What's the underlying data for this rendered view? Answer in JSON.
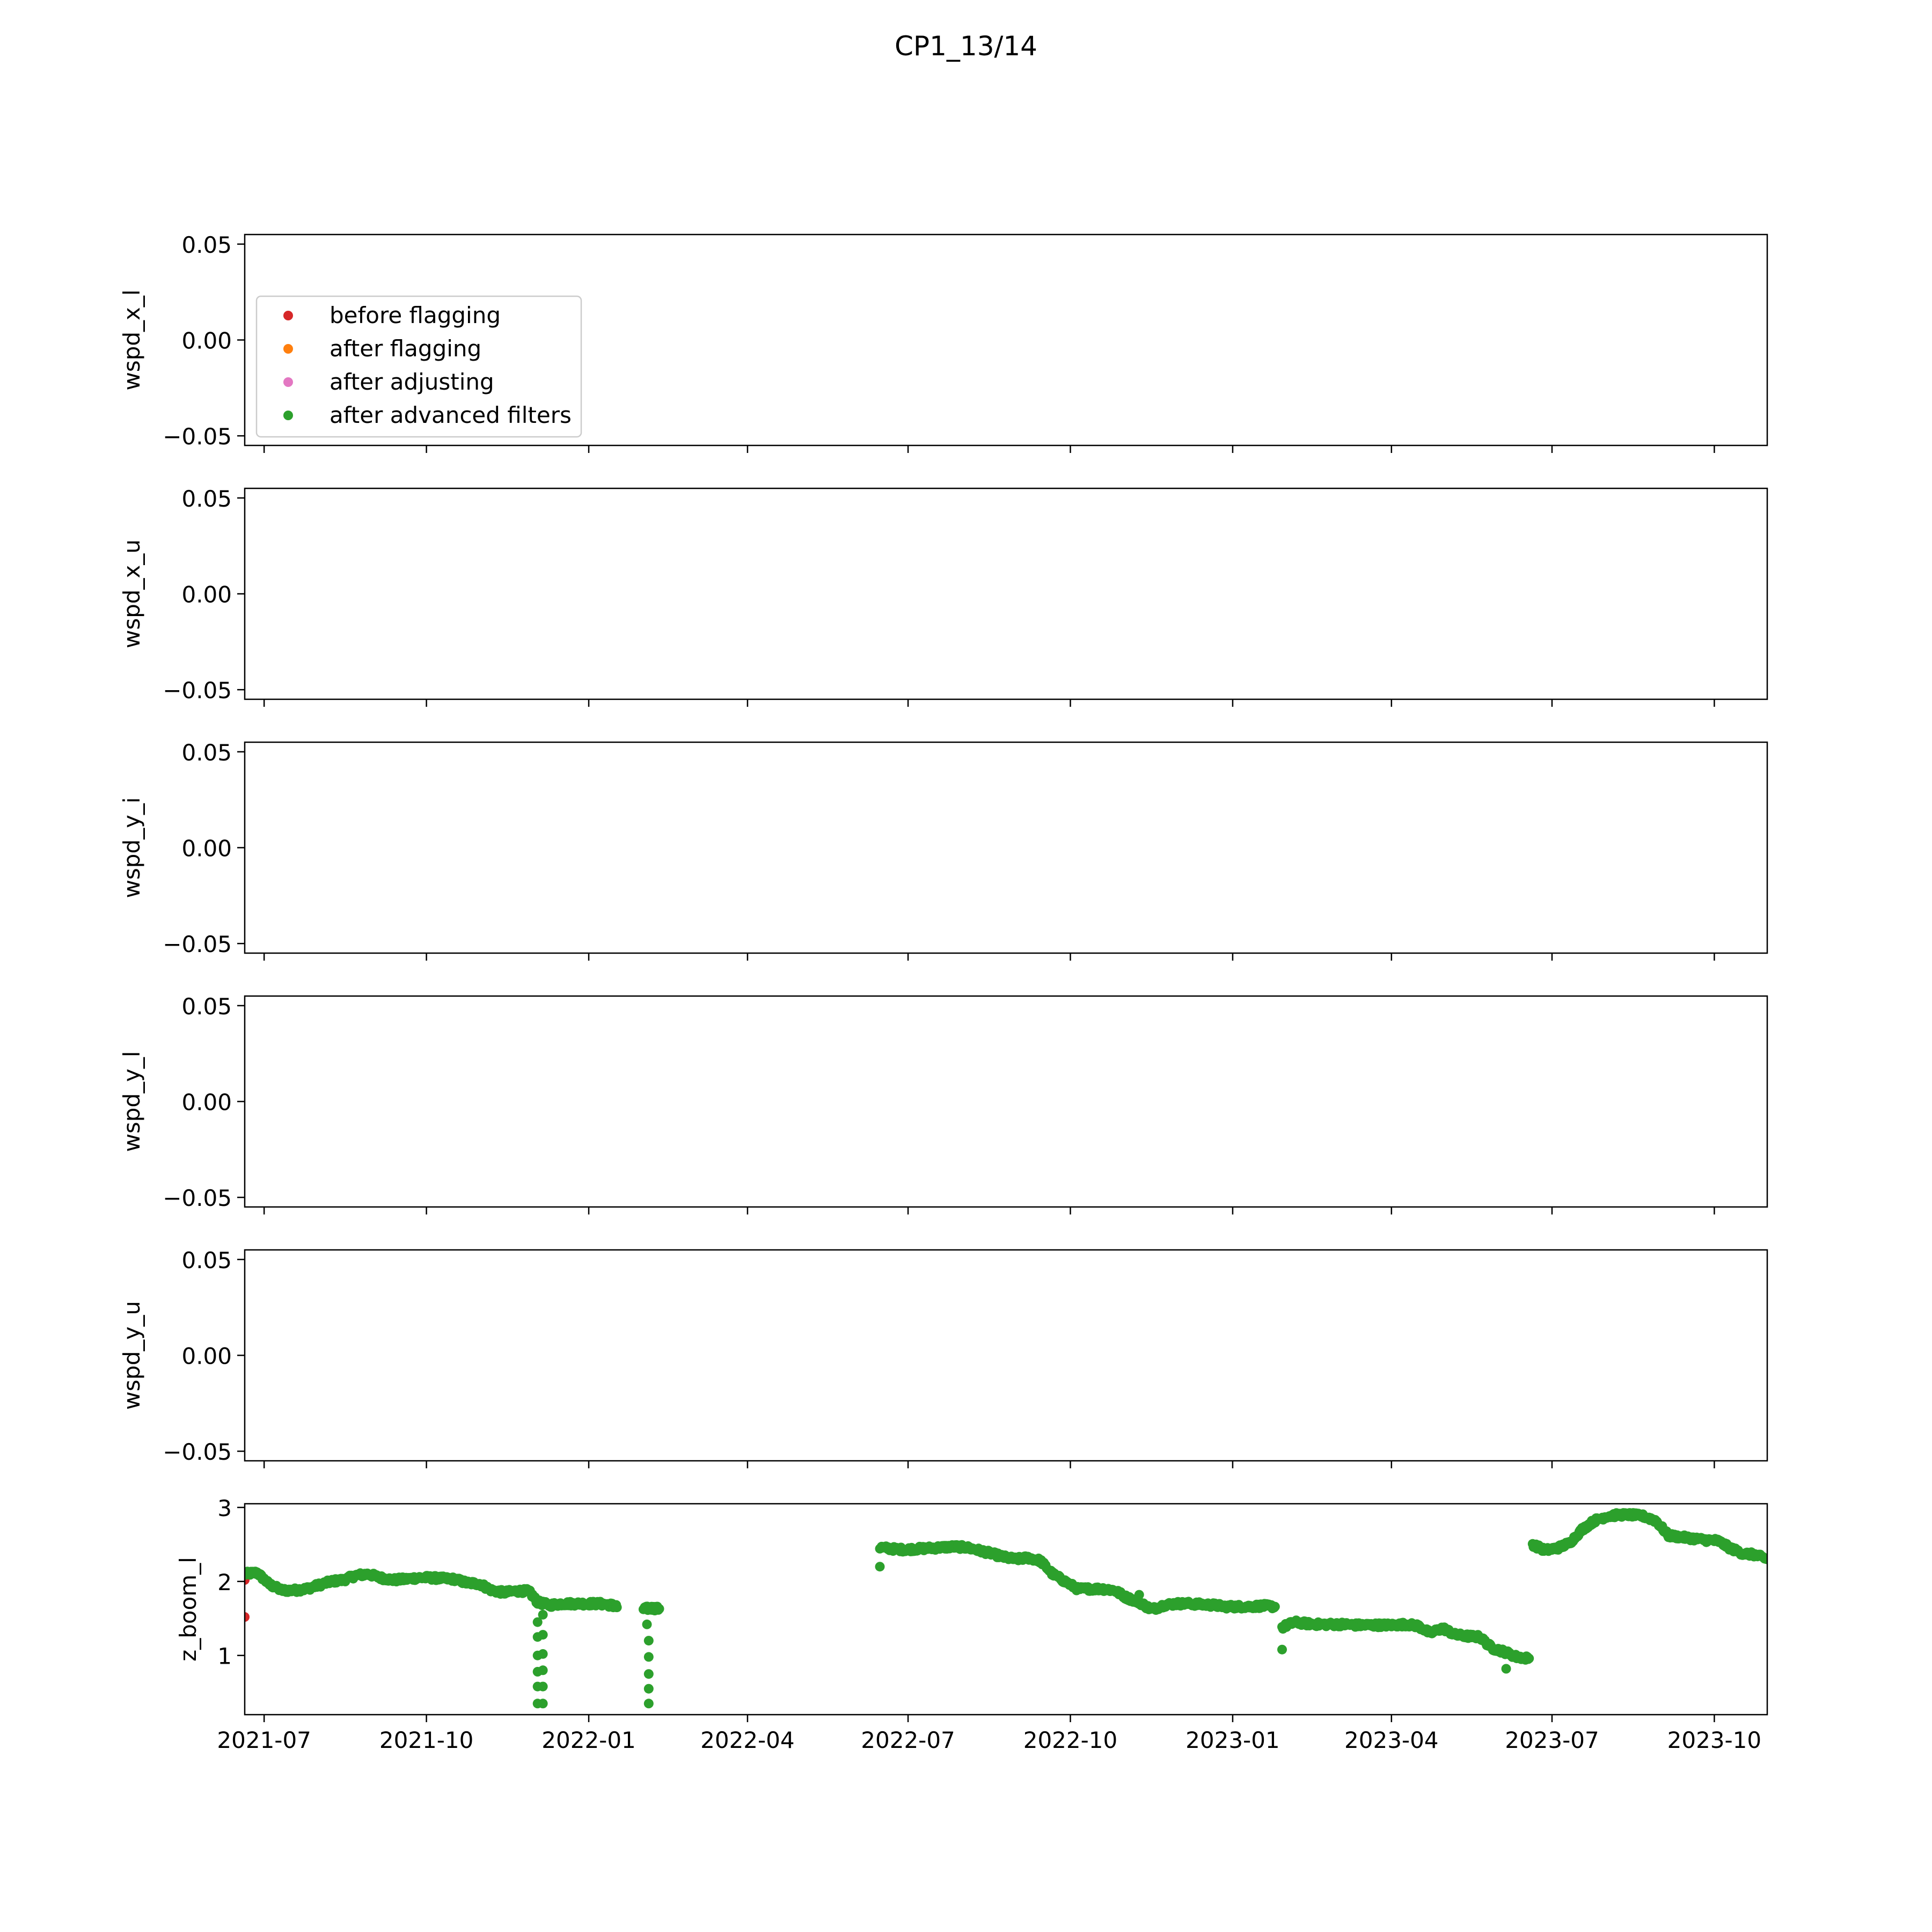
{
  "figure": {
    "title": "CP1_13/14"
  },
  "chart_data": {
    "type": "scatter",
    "title": "CP1_13/14",
    "xlabel": "",
    "x_axis_type": "date",
    "xlim": [
      "2021-06-20",
      "2023-10-31"
    ],
    "x_tick_labels": [
      "2021-07",
      "2021-10",
      "2022-01",
      "2022-04",
      "2022-07",
      "2022-10",
      "2023-01",
      "2023-04",
      "2023-07",
      "2023-10"
    ],
    "x_tick_dates": [
      "2021-07-01",
      "2021-10-01",
      "2022-01-01",
      "2022-04-01",
      "2022-07-01",
      "2022-10-01",
      "2023-01-01",
      "2023-04-01",
      "2023-07-01",
      "2023-10-01"
    ],
    "shared_x": true,
    "legend": {
      "placement": "upper-left of first panel",
      "entries": [
        {
          "label": "before flagging",
          "color": "#d62728"
        },
        {
          "label": "after flagging",
          "color": "#ff7f0e"
        },
        {
          "label": "after adjusting",
          "color": "#e377c2"
        },
        {
          "label": "after advanced filters",
          "color": "#2ca02c"
        }
      ]
    },
    "panels": [
      {
        "ylabel": "wspd_x_l",
        "ylim": [
          -0.055,
          0.055
        ],
        "yticks": [
          0.05,
          0.0,
          -0.05
        ],
        "ytick_labels": [
          "0.05",
          "0.00",
          "−0.05"
        ],
        "series": []
      },
      {
        "ylabel": "wspd_x_u",
        "ylim": [
          -0.055,
          0.055
        ],
        "yticks": [
          0.05,
          0.0,
          -0.05
        ],
        "ytick_labels": [
          "0.05",
          "0.00",
          "−0.05"
        ],
        "series": []
      },
      {
        "ylabel": "wspd_y_i",
        "ylim": [
          -0.055,
          0.055
        ],
        "yticks": [
          0.05,
          0.0,
          -0.05
        ],
        "ytick_labels": [
          "0.05",
          "0.00",
          "−0.05"
        ],
        "series": []
      },
      {
        "ylabel": "wspd_y_l",
        "ylim": [
          -0.055,
          0.055
        ],
        "yticks": [
          0.05,
          0.0,
          -0.05
        ],
        "ytick_labels": [
          "0.05",
          "0.00",
          "−0.05"
        ],
        "series": []
      },
      {
        "ylabel": "wspd_y_u",
        "ylim": [
          -0.055,
          0.055
        ],
        "yticks": [
          0.05,
          0.0,
          -0.05
        ],
        "ytick_labels": [
          "0.05",
          "0.00",
          "−0.05"
        ],
        "series": []
      },
      {
        "ylabel": "z_boom_l",
        "ylim": [
          0.2,
          3.05
        ],
        "yticks": [
          3,
          2,
          1
        ],
        "ytick_labels": [
          "3",
          "2",
          "1"
        ],
        "series": [
          {
            "name": "before flagging",
            "color": "#d62728",
            "points": [
              {
                "x": "2021-06-20",
                "y": 2.02
              },
              {
                "x": "2021-06-20",
                "y": 1.52
              }
            ]
          },
          {
            "name": "after advanced filters",
            "color": "#2ca02c",
            "segments": [
              {
                "x": [
                  "2021-06-20",
                  "2021-06-27",
                  "2021-07-04",
                  "2021-07-11",
                  "2021-07-18",
                  "2021-07-25",
                  "2021-08-01",
                  "2021-08-08",
                  "2021-08-15",
                  "2021-08-22",
                  "2021-08-29",
                  "2021-09-05",
                  "2021-09-12",
                  "2021-09-19",
                  "2021-09-26",
                  "2021-10-03",
                  "2021-10-10",
                  "2021-10-17",
                  "2021-10-24",
                  "2021-10-31",
                  "2021-11-07",
                  "2021-11-14",
                  "2021-11-21",
                  "2021-11-28",
                  "2021-12-03"
                ],
                "y": [
                  2.1,
                  2.12,
                  1.96,
                  1.88,
                  1.88,
                  1.9,
                  1.95,
                  2.0,
                  2.02,
                  2.08,
                  2.1,
                  2.05,
                  2.02,
                  2.03,
                  2.05,
                  2.05,
                  2.04,
                  2.03,
                  1.98,
                  1.97,
                  1.88,
                  1.85,
                  1.87,
                  1.87,
                  1.72
                ]
              },
              {
                "x": [
                  "2021-12-03",
                  "2021-12-10",
                  "2021-12-17",
                  "2021-12-24",
                  "2021-12-31",
                  "2022-01-07",
                  "2022-01-14",
                  "2022-01-17"
                ],
                "y": [
                  1.72,
                  1.68,
                  1.7,
                  1.7,
                  1.7,
                  1.7,
                  1.68,
                  1.65
                ]
              },
              {
                "x": [
                  "2022-02-01",
                  "2022-02-06",
                  "2022-02-10"
                ],
                "y": [
                  1.63,
                  1.64,
                  1.63
                ]
              },
              {
                "x": [
                  "2022-06-15",
                  "2022-06-22",
                  "2022-06-29",
                  "2022-07-06",
                  "2022-07-13",
                  "2022-07-20",
                  "2022-07-27",
                  "2022-08-03",
                  "2022-08-10",
                  "2022-08-17",
                  "2022-08-24",
                  "2022-08-31",
                  "2022-09-07",
                  "2022-09-14",
                  "2022-09-21",
                  "2022-09-28",
                  "2022-10-05",
                  "2022-10-12",
                  "2022-10-19",
                  "2022-10-26",
                  "2022-11-02",
                  "2022-11-09",
                  "2022-11-16",
                  "2022-11-23",
                  "2022-11-30",
                  "2022-12-07",
                  "2022-12-14",
                  "2022-12-21",
                  "2022-12-28",
                  "2023-01-04",
                  "2023-01-11",
                  "2023-01-18",
                  "2023-01-25"
                ],
                "y": [
                  2.46,
                  2.44,
                  2.43,
                  2.44,
                  2.45,
                  2.46,
                  2.47,
                  2.46,
                  2.42,
                  2.38,
                  2.33,
                  2.3,
                  2.32,
                  2.28,
                  2.1,
                  2.0,
                  1.9,
                  1.9,
                  1.9,
                  1.88,
                  1.78,
                  1.72,
                  1.62,
                  1.68,
                  1.7,
                  1.7,
                  1.69,
                  1.68,
                  1.66,
                  1.66,
                  1.66,
                  1.67,
                  1.66
                ]
              },
              {
                "x": [
                  "2023-01-29",
                  "2023-02-05",
                  "2023-02-12",
                  "2023-02-19",
                  "2023-02-26",
                  "2023-03-05",
                  "2023-03-12",
                  "2023-03-19",
                  "2023-03-26",
                  "2023-04-02",
                  "2023-04-09",
                  "2023-04-16",
                  "2023-04-23",
                  "2023-04-30",
                  "2023-05-07",
                  "2023-05-14",
                  "2023-05-21",
                  "2023-05-28",
                  "2023-06-04",
                  "2023-06-11",
                  "2023-06-18"
                ],
                "y": [
                  1.38,
                  1.45,
                  1.43,
                  1.42,
                  1.42,
                  1.42,
                  1.41,
                  1.41,
                  1.41,
                  1.41,
                  1.42,
                  1.4,
                  1.3,
                  1.37,
                  1.28,
                  1.26,
                  1.25,
                  1.1,
                  1.05,
                  0.98,
                  0.96
                ]
              },
              {
                "x": [
                  "2023-06-20",
                  "2023-06-27",
                  "2023-07-04",
                  "2023-07-11",
                  "2023-07-18",
                  "2023-07-25",
                  "2023-08-01",
                  "2023-08-08",
                  "2023-08-15",
                  "2023-08-22",
                  "2023-08-29",
                  "2023-09-05",
                  "2023-09-12",
                  "2023-09-19",
                  "2023-09-26",
                  "2023-10-03",
                  "2023-10-10",
                  "2023-10-17",
                  "2023-10-24",
                  "2023-10-31"
                ],
                "y": [
                  2.5,
                  2.42,
                  2.45,
                  2.52,
                  2.7,
                  2.82,
                  2.88,
                  2.9,
                  2.9,
                  2.88,
                  2.82,
                  2.62,
                  2.6,
                  2.58,
                  2.56,
                  2.55,
                  2.45,
                  2.38,
                  2.36,
                  2.3
                ]
              }
            ],
            "points": [
              {
                "x": "2021-12-03",
                "y": 0.35
              },
              {
                "x": "2021-12-03",
                "y": 0.58
              },
              {
                "x": "2021-12-03",
                "y": 0.78
              },
              {
                "x": "2021-12-03",
                "y": 1.0
              },
              {
                "x": "2021-12-03",
                "y": 1.25
              },
              {
                "x": "2021-12-03",
                "y": 1.45
              },
              {
                "x": "2021-12-06",
                "y": 0.35
              },
              {
                "x": "2021-12-06",
                "y": 0.58
              },
              {
                "x": "2021-12-06",
                "y": 0.8
              },
              {
                "x": "2021-12-06",
                "y": 1.02
              },
              {
                "x": "2021-12-06",
                "y": 1.28
              },
              {
                "x": "2021-12-06",
                "y": 1.55
              },
              {
                "x": "2022-02-04",
                "y": 0.35
              },
              {
                "x": "2022-02-04",
                "y": 0.55
              },
              {
                "x": "2022-02-04",
                "y": 0.75
              },
              {
                "x": "2022-02-04",
                "y": 0.98
              },
              {
                "x": "2022-02-04",
                "y": 1.2
              },
              {
                "x": "2022-02-03",
                "y": 1.42
              },
              {
                "x": "2022-06-15",
                "y": 2.2
              },
              {
                "x": "2022-11-09",
                "y": 1.82
              },
              {
                "x": "2023-01-29",
                "y": 1.08
              },
              {
                "x": "2023-06-05",
                "y": 0.82
              }
            ]
          }
        ]
      }
    ]
  }
}
